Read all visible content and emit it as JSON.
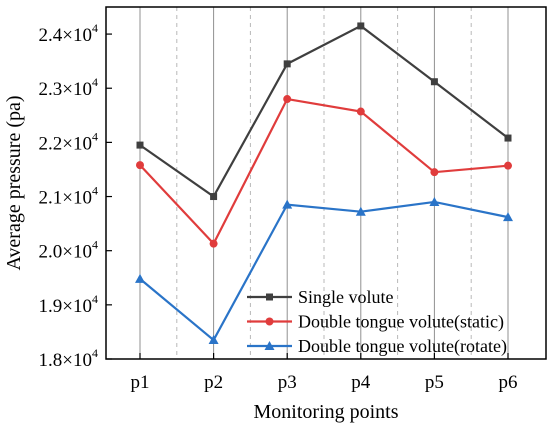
{
  "chart_data": {
    "type": "line",
    "title": "",
    "xlabel": "Monitoring points",
    "ylabel": "Average pressure (pa)",
    "categories": [
      "p1",
      "p2",
      "p3",
      "p4",
      "p5",
      "p6"
    ],
    "ylim": [
      18000,
      24500
    ],
    "yticks": [
      {
        "value": 18000,
        "mantissa": "1.8×10",
        "exp": "4"
      },
      {
        "value": 19000,
        "mantissa": "1.9×10",
        "exp": "4"
      },
      {
        "value": 20000,
        "mantissa": "2.0×10",
        "exp": "4"
      },
      {
        "value": 21000,
        "mantissa": "2.1×10",
        "exp": "4"
      },
      {
        "value": 22000,
        "mantissa": "2.2×10",
        "exp": "4"
      },
      {
        "value": 23000,
        "mantissa": "2.3×10",
        "exp": "4"
      },
      {
        "value": 24000,
        "mantissa": "2.4×10",
        "exp": "4"
      }
    ],
    "grid": "vertical solid at categories, dashed at midpoints",
    "legend_position": "bottom-right",
    "series": [
      {
        "name": "Single volute",
        "color": "#3f3f3f",
        "marker": "square",
        "values": [
          21950,
          21000,
          23450,
          24150,
          23120,
          22080
        ]
      },
      {
        "name": "Double tongue volute(static)",
        "color": "#e03c3c",
        "marker": "circle",
        "values": [
          21580,
          20130,
          22800,
          22570,
          21450,
          21570
        ]
      },
      {
        "name": "Double tongue volute(rotate)",
        "color": "#2a74c8",
        "marker": "triangle",
        "values": [
          19480,
          18350,
          20850,
          20720,
          20900,
          20620
        ]
      }
    ]
  }
}
